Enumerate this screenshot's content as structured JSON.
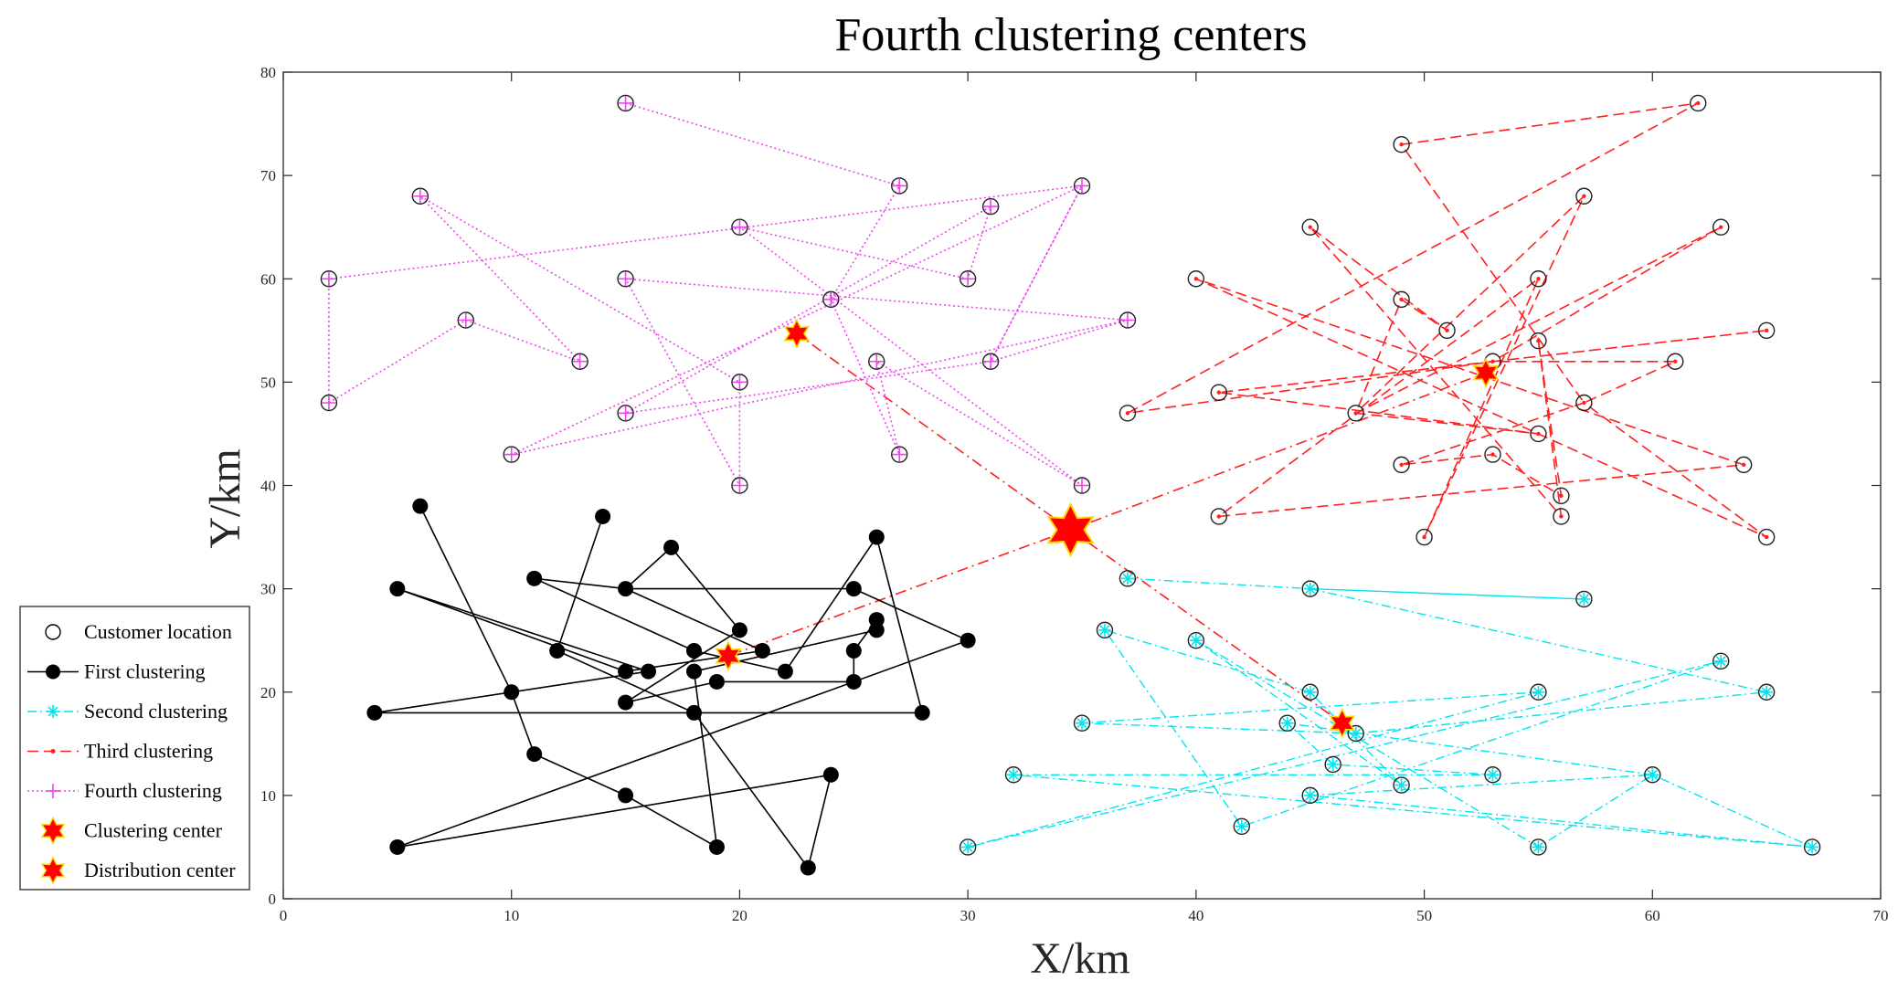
{
  "chart_data": {
    "type": "scatter",
    "title": "Fourth clustering centers",
    "xlabel": "X/km",
    "ylabel": "Y/km",
    "xlim": [
      0,
      70
    ],
    "ylim": [
      0,
      80
    ],
    "xticks": [
      0,
      10,
      20,
      30,
      40,
      50,
      60,
      70
    ],
    "yticks": [
      0,
      10,
      20,
      30,
      40,
      50,
      60,
      70,
      80
    ],
    "grid": false,
    "legend_position": "left",
    "legend": [
      {
        "key": "customer",
        "label": "Customer location"
      },
      {
        "key": "first",
        "label": "First clustering"
      },
      {
        "key": "second",
        "label": "Second clustering"
      },
      {
        "key": "third",
        "label": "Third clustering"
      },
      {
        "key": "fourth",
        "label": "Fourth clustering"
      },
      {
        "key": "center",
        "label": "Clustering center"
      },
      {
        "key": "depot",
        "label": "Distribution center"
      }
    ],
    "colors": {
      "first": "#000000",
      "second": "#00e5ee",
      "third": "#ff2020",
      "fourth": "#ee44ee",
      "star_fill": "#ff0000",
      "star_edge": "#ffd700"
    },
    "distribution_center": {
      "x": 34.5,
      "y": 35.7
    },
    "center_links": [
      {
        "x": 22.5,
        "y": 54.7
      },
      {
        "x": 52.7,
        "y": 50.9
      },
      {
        "x": 46.4,
        "y": 17.0
      },
      {
        "x": 19.5,
        "y": 23.5
      }
    ],
    "series": [
      {
        "name": "First clustering",
        "key": "first",
        "center": {
          "x": 19.5,
          "y": 23.5
        },
        "route": [
          [
            6,
            38
          ],
          [
            10,
            20
          ],
          [
            11,
            14
          ],
          [
            15,
            10
          ],
          [
            19,
            5
          ],
          [
            18,
            22
          ],
          [
            26,
            26
          ],
          [
            26,
            27
          ],
          [
            25,
            24
          ],
          [
            25,
            21
          ],
          [
            19,
            21
          ],
          [
            15,
            19
          ],
          [
            20,
            26
          ],
          [
            17,
            34
          ],
          [
            15,
            30
          ],
          [
            21,
            24
          ],
          [
            15,
            22
          ],
          [
            5,
            30
          ],
          [
            16,
            22
          ],
          [
            10,
            20
          ],
          [
            4,
            18
          ],
          [
            28,
            18
          ],
          [
            26,
            35
          ],
          [
            22,
            22
          ],
          [
            18,
            24
          ],
          [
            11,
            31
          ],
          [
            15,
            30
          ],
          [
            25,
            30
          ],
          [
            30,
            25
          ],
          [
            5,
            5
          ],
          [
            24,
            12
          ],
          [
            23,
            3
          ],
          [
            18,
            18
          ],
          [
            12,
            24
          ],
          [
            14,
            37
          ]
        ]
      },
      {
        "name": "Second clustering",
        "key": "second",
        "center": {
          "x": 46.4,
          "y": 17.0
        },
        "route": [
          [
            37,
            31
          ],
          [
            45,
            30
          ],
          [
            57,
            29
          ],
          [
            45,
            30
          ],
          [
            65,
            20
          ],
          [
            47,
            16
          ],
          [
            35,
            17
          ],
          [
            55,
            20
          ],
          [
            30,
            5
          ],
          [
            63,
            23
          ],
          [
            42,
            7
          ],
          [
            36,
            26
          ],
          [
            45,
            20
          ],
          [
            49,
            11
          ],
          [
            40,
            25
          ],
          [
            55,
            5
          ],
          [
            60,
            12
          ],
          [
            45,
            10
          ],
          [
            67,
            5
          ],
          [
            32,
            12
          ],
          [
            53,
            12
          ],
          [
            46,
            13
          ],
          [
            44,
            17
          ],
          [
            60,
            12
          ],
          [
            67,
            5
          ]
        ]
      },
      {
        "name": "Third clustering",
        "key": "third",
        "center": {
          "x": 52.7,
          "y": 50.9
        },
        "route": [
          [
            49,
            73
          ],
          [
            62,
            77
          ],
          [
            37,
            47
          ],
          [
            53,
            52
          ],
          [
            41,
            49
          ],
          [
            55,
            45
          ],
          [
            47,
            47
          ],
          [
            49,
            58
          ],
          [
            51,
            55
          ],
          [
            45,
            65
          ],
          [
            56,
            37
          ],
          [
            55,
            54
          ],
          [
            56,
            39
          ],
          [
            53,
            43
          ],
          [
            49,
            42
          ],
          [
            57,
            48
          ],
          [
            65,
            35
          ],
          [
            40,
            60
          ],
          [
            64,
            42
          ],
          [
            41,
            37
          ],
          [
            55,
            60
          ],
          [
            50,
            35
          ],
          [
            57,
            68
          ],
          [
            47,
            47
          ],
          [
            63,
            65
          ],
          [
            53,
            52
          ],
          [
            65,
            55
          ],
          [
            53,
            52
          ],
          [
            61,
            52
          ],
          [
            57,
            48
          ],
          [
            49,
            73
          ]
        ]
      },
      {
        "name": "Fourth clustering",
        "key": "fourth",
        "center": {
          "x": 22.5,
          "y": 54.7
        },
        "route": [
          [
            15,
            77
          ],
          [
            27,
            69
          ],
          [
            24,
            58
          ],
          [
            27,
            43
          ],
          [
            26,
            52
          ],
          [
            35,
            40
          ],
          [
            20,
            65
          ],
          [
            30,
            60
          ],
          [
            31,
            67
          ],
          [
            15,
            47
          ],
          [
            31,
            52
          ],
          [
            35,
            69
          ],
          [
            2,
            60
          ],
          [
            2,
            48
          ],
          [
            8,
            56
          ],
          [
            13,
            52
          ],
          [
            6,
            68
          ],
          [
            20,
            50
          ],
          [
            20,
            40
          ],
          [
            15,
            60
          ],
          [
            37,
            56
          ],
          [
            10,
            43
          ],
          [
            35,
            69
          ],
          [
            31,
            52
          ],
          [
            37,
            56
          ]
        ]
      }
    ]
  }
}
